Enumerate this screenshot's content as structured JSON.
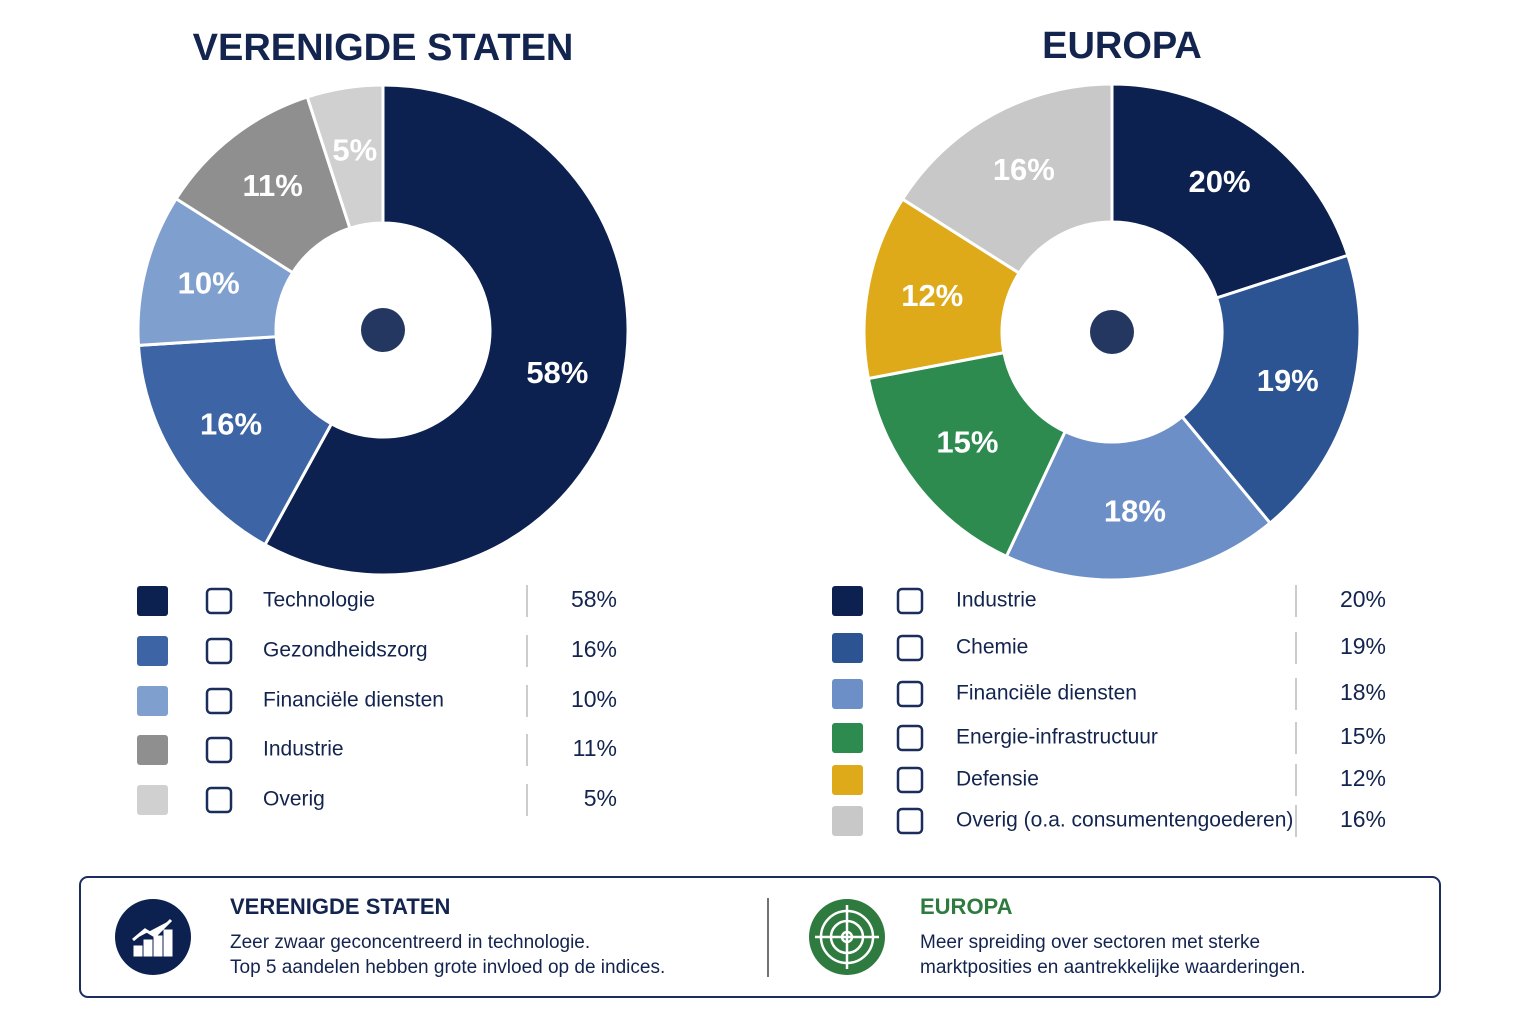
{
  "chart_data": [
    {
      "type": "pie",
      "title": "VERENIGDE STATEN",
      "categories": [
        "Technologie",
        "Gezondheidszorg",
        "Financiële diensten",
        "Industrie",
        "Overig"
      ],
      "values": [
        58,
        16,
        10,
        11,
        5
      ],
      "value_labels": [
        "58%",
        "16%",
        "10%",
        "11%",
        "5%"
      ],
      "colors": [
        "#0c2150",
        "#3d65a5",
        "#7f9fcf",
        "#8f8f8f",
        "#d0d0d0"
      ]
    },
    {
      "type": "pie",
      "title": "EUROPA",
      "categories": [
        "Industrie",
        "Chemie",
        "Financiële diensten",
        "Energie-infrastructuur",
        "Defensie",
        "Overig (o.a. consumentengoederen)"
      ],
      "values": [
        20,
        19,
        18,
        15,
        12,
        16
      ],
      "value_labels": [
        "20%",
        "19%",
        "18%",
        "15%",
        "12%",
        "16%"
      ],
      "colors": [
        "#0c2150",
        "#2d5492",
        "#6d8fc7",
        "#2e8b4f",
        "#deaa1a",
        "#c8c8c8"
      ]
    }
  ],
  "summary": {
    "us": {
      "title": "VERENIGDE STATEN",
      "lines": [
        "Zeer zwaar geconcentreerd in technologie.",
        "Top 5 aandelen hebben grote invloed op de indices."
      ]
    },
    "eu": {
      "title": "EUROPA",
      "lines": [
        "Meer spreiding over sectoren met sterke",
        "marktposities en aantrekkelijke waarderingen."
      ]
    }
  }
}
